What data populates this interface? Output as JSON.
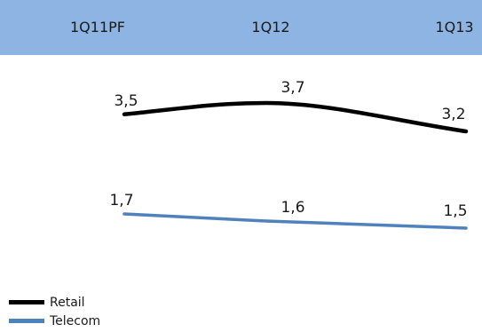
{
  "chart_data": {
    "type": "line",
    "categories": [
      "1Q11PF",
      "1Q12",
      "1Q13"
    ],
    "series": [
      {
        "name": "Retail",
        "values": [
          "3,5",
          "3,7",
          "3,2"
        ],
        "numeric": [
          3.5,
          3.7,
          3.2
        ],
        "color": "#000000"
      },
      {
        "name": "Telecom",
        "values": [
          "1,7",
          "1,6",
          "1,5"
        ],
        "numeric": [
          1.7,
          1.6,
          1.5
        ],
        "color": "#4f81bd"
      }
    ],
    "header_band_color": "#8db4e2",
    "legend_position": "bottom-left",
    "grid": false
  }
}
